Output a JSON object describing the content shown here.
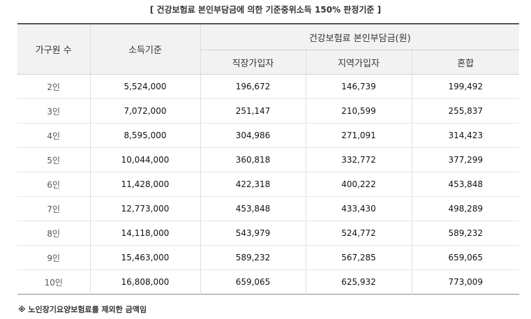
{
  "caption": "[ 건강보험료 본인부담금에 의한 기준중위소득 150% 판정기준 ]",
  "table": {
    "headers": {
      "household": "가구원 수",
      "income": "소득기준",
      "premium_group": "건강보험료 본인부담금(원)",
      "employee": "직장가입자",
      "regional": "지역가입자",
      "mixed": "혼합"
    },
    "rows": [
      {
        "household": "2인",
        "income": "5,524,000",
        "employee": "196,672",
        "regional": "146,739",
        "mixed": "199,492"
      },
      {
        "household": "3인",
        "income": "7,072,000",
        "employee": "251,147",
        "regional": "210,599",
        "mixed": "255,837"
      },
      {
        "household": "4인",
        "income": "8,595,000",
        "employee": "304,986",
        "regional": "271,091",
        "mixed": "314,423"
      },
      {
        "household": "5인",
        "income": "10,044,000",
        "employee": "360,818",
        "regional": "332,772",
        "mixed": "377,299"
      },
      {
        "household": "6인",
        "income": "11,428,000",
        "employee": "422,318",
        "regional": "400,222",
        "mixed": "453,848"
      },
      {
        "household": "7인",
        "income": "12,773,000",
        "employee": "453,848",
        "regional": "433,430",
        "mixed": "498,289"
      },
      {
        "household": "8인",
        "income": "14,118,000",
        "employee": "543,979",
        "regional": "524,772",
        "mixed": "589,232"
      },
      {
        "household": "9인",
        "income": "15,463,000",
        "employee": "589,232",
        "regional": "567,285",
        "mixed": "659,065"
      },
      {
        "household": "10인",
        "income": "16,808,000",
        "employee": "659,065",
        "regional": "625,932",
        "mixed": "773,009"
      }
    ]
  },
  "note": "※ 노인장기요양보험료를 제외한 금액임"
}
